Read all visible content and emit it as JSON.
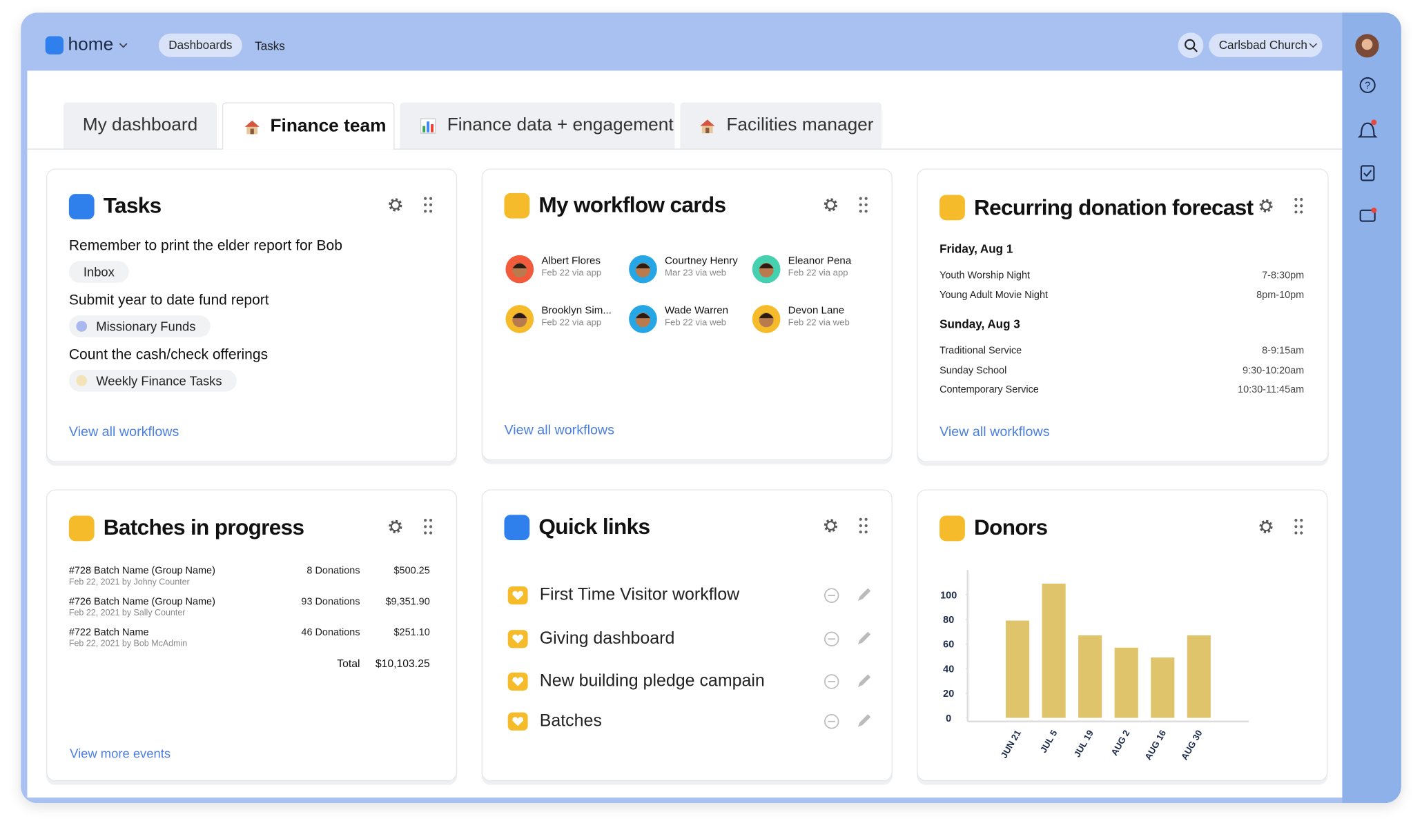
{
  "nav": {
    "brand": "home",
    "tabs": [
      "Dashboards",
      "Tasks"
    ],
    "organization": "Carlsbad Church"
  },
  "dashboard_tabs": [
    "My dashboard",
    "Finance team",
    "Finance data + engagement",
    "Facilities manager"
  ],
  "tasks": {
    "title": "Tasks",
    "items": [
      {
        "text": "Remember to print the elder report for Bob",
        "tag": "Inbox"
      },
      {
        "text": "Submit year to date fund report",
        "tag": "Missionary Funds"
      },
      {
        "text": "Count the cash/check offerings",
        "tag": "Weekly Finance Tasks"
      }
    ],
    "link": "View all workflows"
  },
  "workflow_cards": {
    "title": "My workflow cards",
    "people": [
      {
        "name": "Albert Flores",
        "meta": "Feb 22 via app"
      },
      {
        "name": "Courtney Henry",
        "meta": "Mar 23 via web"
      },
      {
        "name": "Eleanor Pena",
        "meta": "Feb 22 via app"
      },
      {
        "name": "Brooklyn Sim...",
        "meta": "Feb 22 via app"
      },
      {
        "name": "Wade Warren",
        "meta": "Feb 22 via web"
      },
      {
        "name": "Devon Lane",
        "meta": "Feb 22 via web"
      }
    ],
    "link": "View all workflows"
  },
  "donation_forecast": {
    "title": "Recurring donation forecast",
    "days": [
      {
        "date": "Friday, Aug 1",
        "events": [
          {
            "name": "Youth Worship Night",
            "time": "7-8:30pm"
          },
          {
            "name": "Young Adult Movie Night",
            "time": "8pm-10pm"
          }
        ]
      },
      {
        "date": "Sunday, Aug 3",
        "events": [
          {
            "name": "Traditional Service",
            "time": "8-9:15am"
          },
          {
            "name": "Sunday School",
            "time": "9:30-10:20am"
          },
          {
            "name": "Contemporary Service",
            "time": "10:30-11:45am"
          }
        ]
      }
    ],
    "link": "View all workflows"
  },
  "batches": {
    "title": "Batches in progress",
    "rows": [
      {
        "name": "#728 Batch Name (Group Name)",
        "meta": "Feb 22, 2021 by Johny Counter",
        "donations": "8 Donations",
        "amount": "$500.25"
      },
      {
        "name": "#726 Batch Name (Group Name)",
        "meta": "Feb 22, 2021 by Sally Counter",
        "donations": "93 Donations",
        "amount": "$9,351.90"
      },
      {
        "name": "#722 Batch Name",
        "meta": "Feb 22, 2021 by Bob McAdmin",
        "donations": "46 Donations",
        "amount": "$251.10"
      }
    ],
    "total_label": "Total",
    "total": "$10,103.25",
    "link": "View more events"
  },
  "quick_links": {
    "title": "Quick links",
    "items": [
      "First Time Visitor workflow",
      "Giving dashboard",
      "New building pledge campain",
      "Batches"
    ]
  },
  "chart_data": {
    "type": "bar",
    "title": "Donors",
    "categories": [
      "JUN 21",
      "JUL 5",
      "JUL 19",
      "AUG 2",
      "AUG 16",
      "AUG 30"
    ],
    "values": [
      79,
      109,
      67,
      57,
      49,
      67
    ],
    "color": "#e0c46c",
    "ylim": [
      0,
      120
    ],
    "yticks": [
      0,
      20,
      40,
      60,
      80,
      100
    ]
  }
}
